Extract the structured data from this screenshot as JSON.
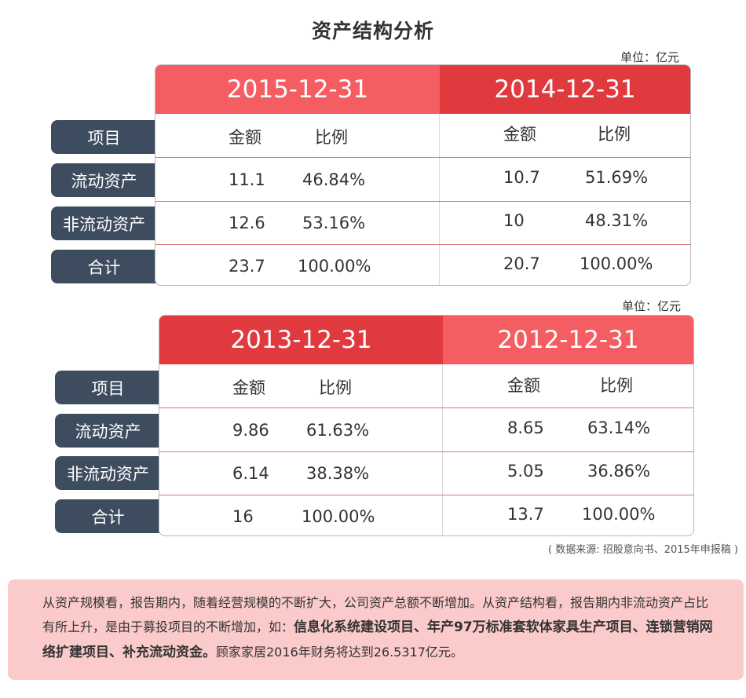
{
  "title": "资产结构分析",
  "unit": "单位：亿元",
  "labels": [
    "项目",
    "流动资产",
    "非流动资产",
    "合计"
  ],
  "tables": [
    {
      "left_year": "2015-12-31",
      "right_year": "2014-12-31",
      "left_color": "#f45d62",
      "right_color": "#e03a3f",
      "headers": [
        "金额",
        "比例"
      ],
      "left_rows": [
        [
          "11.1",
          "46.84%"
        ],
        [
          "12.6",
          "53.16%"
        ],
        [
          "23.7",
          "100.00%"
        ]
      ],
      "right_rows": [
        [
          "10.7",
          "51.69%"
        ],
        [
          "10",
          "48.31%"
        ],
        [
          "20.7",
          "100.00%"
        ]
      ]
    },
    {
      "left_year": "2013-12-31",
      "right_year": "2012-12-31",
      "left_color": "#e03a3f",
      "right_color": "#f45d62",
      "headers": [
        "金额",
        "比例"
      ],
      "left_rows": [
        [
          "9.86",
          "61.63%"
        ],
        [
          "6.14",
          "38.38%"
        ],
        [
          "16",
          "100.00%"
        ]
      ],
      "right_rows": [
        [
          "8.65",
          "63.14%"
        ],
        [
          "5.05",
          "36.86%"
        ],
        [
          "13.7",
          "100.00%"
        ]
      ]
    }
  ],
  "source": "( 数据来源: 招股意向书、2015年申报稿 )",
  "note": {
    "p1": "从资产规模看，报告期内，随着经营规模的不断扩大，公司资产总额不断增加。从资产结构看，报告期内非流动资产占比有所上升，是由于募投项目的不断增加，如：",
    "bold": "信息化系统建设项目、年产97万标准套软体家具生产项目、连锁营销网络扩建项目、补充流动资金。",
    "p2": "顾家家居2016年财务将达到26.5317亿元。"
  }
}
